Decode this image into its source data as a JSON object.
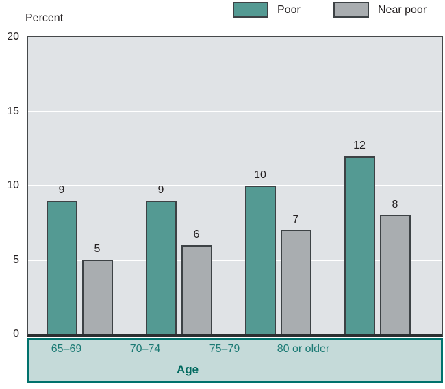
{
  "legend": {
    "items": [
      {
        "label": "Poor",
        "color": "#549a93"
      },
      {
        "label": "Near poor",
        "color": "#a9adb0"
      }
    ]
  },
  "chart_data": {
    "type": "bar",
    "title": "",
    "ylabel": "Percent",
    "xlabel": "Age",
    "categories": [
      "65–69",
      "70–74",
      "75–79",
      "80 or older"
    ],
    "series": [
      {
        "name": "Poor",
        "color": "#549a93",
        "values": [
          9,
          9,
          10,
          12
        ]
      },
      {
        "name": "Near poor",
        "color": "#a9adb0",
        "values": [
          5,
          6,
          7,
          8
        ]
      }
    ],
    "ylim": [
      0,
      20
    ],
    "yticks": [
      0,
      5,
      10,
      15,
      20
    ],
    "grid": true,
    "gridline_values": [
      5,
      10,
      15
    ],
    "legend_position": "top",
    "plot_background": "#e0e3e6",
    "gridline_color": "#ffffff",
    "bar_border_color": "#3d4245",
    "axis_line_color": "#2b2f31",
    "age_box_fill": "#c5dad9",
    "age_box_border": "#00716c",
    "category_label_color": "#1b7a74"
  }
}
